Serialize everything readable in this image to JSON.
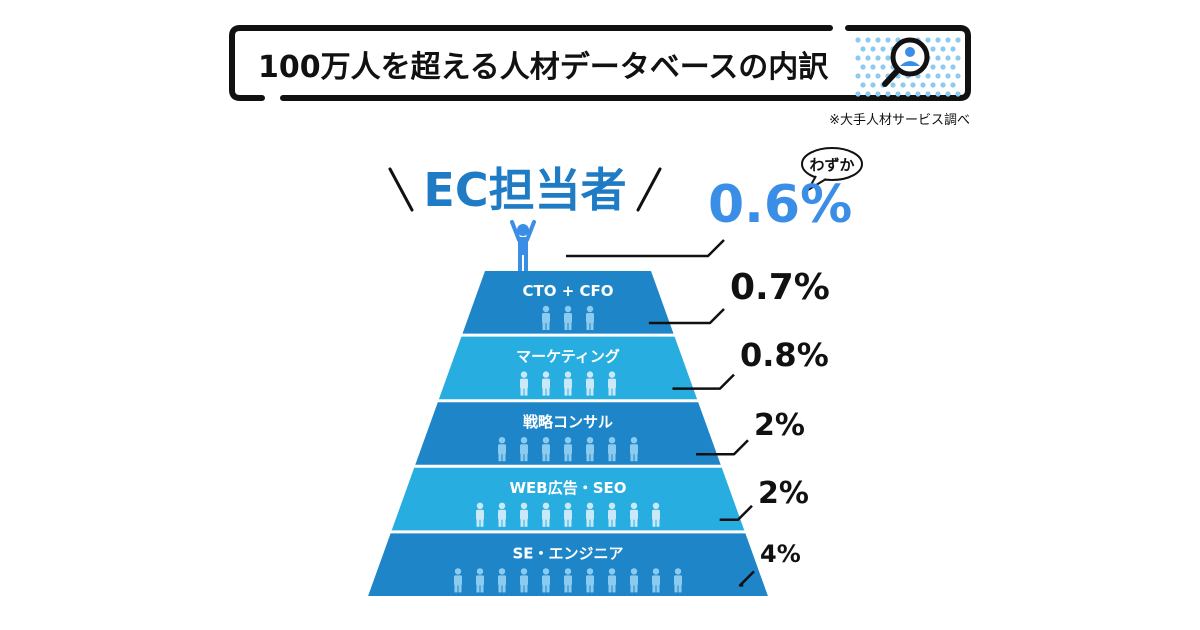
{
  "header": {
    "title": "100万人を超える人材データベースの内訳",
    "note": "※大手人材サービス調べ"
  },
  "icons": {
    "search": "search-user-icon",
    "person": "person-icon",
    "top": "person-raised-arms-icon"
  },
  "colors": {
    "dark_blue": "#1E86C8",
    "light_blue": "#28ADE0",
    "text_blue": "#1E7BC4",
    "pct_blue": "#3B8EE6",
    "icon_dark": "#8CCBF0",
    "icon_light": "#C9E9F8",
    "dots": "#8CCBF0"
  },
  "top_role": {
    "label": "EC担当者",
    "value": "0.6%",
    "callout": "わずか"
  },
  "chart_data": {
    "type": "bar",
    "title": "100万人を超える人材データベースの内訳",
    "categories": [
      "EC担当者",
      "CTO + CFO",
      "マーケティング",
      "戦略コンサル",
      "WEB広告・SEO",
      "SE・エンジニア"
    ],
    "values": [
      0.6,
      0.7,
      0.8,
      2,
      2,
      4
    ],
    "value_labels": [
      "0.6%",
      "0.7%",
      "0.8%",
      "2%",
      "2%",
      "4%"
    ],
    "unit": "%",
    "people_icons": [
      null,
      3,
      5,
      7,
      9,
      11
    ]
  }
}
